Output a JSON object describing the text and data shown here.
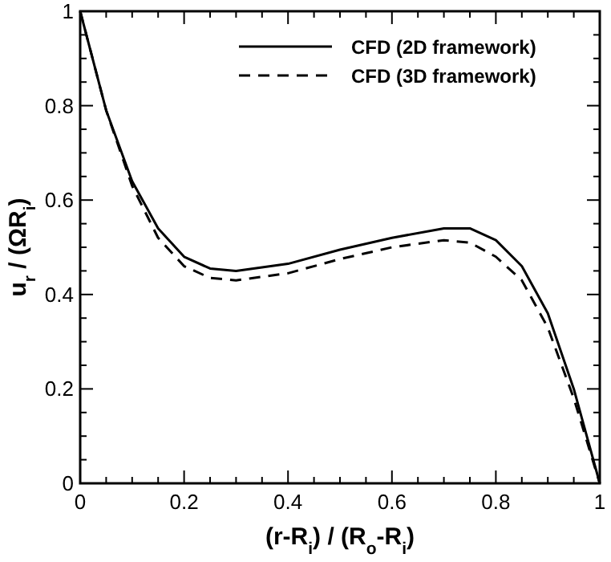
{
  "chart_data": {
    "type": "line",
    "xlabel": "(r-R$_{i}$) / (R$_{o}$-R$_{i}$)",
    "ylabel": "u$_{r}$ / (ΩR$_{i}$)",
    "x": [
      0,
      0.05,
      0.1,
      0.15,
      0.2,
      0.25,
      0.3,
      0.4,
      0.5,
      0.6,
      0.7,
      0.75,
      0.8,
      0.85,
      0.9,
      0.95,
      1
    ],
    "series": [
      {
        "name": "CFD (2D framework)",
        "color": "#000000",
        "line_style": "solid",
        "values": [
          1,
          0.79,
          0.64,
          0.54,
          0.48,
          0.455,
          0.45,
          0.465,
          0.495,
          0.52,
          0.54,
          0.54,
          0.515,
          0.46,
          0.36,
          0.2,
          0
        ]
      },
      {
        "name": "CFD (3D framework)",
        "color": "#000000",
        "line_style": "dashed",
        "values": [
          1,
          0.79,
          0.63,
          0.52,
          0.46,
          0.435,
          0.43,
          0.445,
          0.475,
          0.5,
          0.515,
          0.51,
          0.48,
          0.43,
          0.33,
          0.18,
          0
        ]
      }
    ],
    "xlim": [
      0,
      1
    ],
    "ylim": [
      0,
      1
    ],
    "xticks": [
      0,
      {
        "value": 0.05,
        "label": null
      },
      {
        "value": 0.1,
        "label": null
      },
      {
        "value": 0.15,
        "label": null
      },
      0.2,
      {
        "value": 0.25,
        "label": null
      },
      {
        "value": 0.3,
        "label": null
      },
      {
        "value": 0.35,
        "label": null
      },
      0.4,
      {
        "value": 0.45,
        "label": null
      },
      {
        "value": 0.5,
        "label": null
      },
      {
        "value": 0.55,
        "label": null
      },
      0.6,
      {
        "value": 0.65,
        "label": null
      },
      {
        "value": 0.7,
        "label": null
      },
      {
        "value": 0.75,
        "label": null
      },
      0.8,
      {
        "value": 0.85,
        "label": null
      },
      {
        "value": 0.9,
        "label": null
      },
      {
        "value": 0.95,
        "label": null
      },
      1
    ],
    "yticks": [
      0,
      {
        "value": 0.05,
        "label": null
      },
      {
        "value": 0.1,
        "label": null
      },
      {
        "value": 0.15,
        "label": null
      },
      0.2,
      {
        "value": 0.25,
        "label": null
      },
      {
        "value": 0.3,
        "label": null
      },
      {
        "value": 0.35,
        "label": null
      },
      0.4,
      {
        "value": 0.45,
        "label": null
      },
      {
        "value": 0.5,
        "label": null
      },
      {
        "value": 0.55,
        "label": null
      },
      0.6,
      {
        "value": 0.65,
        "label": null
      },
      {
        "value": 0.7,
        "label": null
      },
      {
        "value": 0.75,
        "label": null
      },
      0.8,
      {
        "value": 0.85,
        "label": null
      },
      {
        "value": 0.9,
        "label": null
      },
      {
        "value": 0.95,
        "label": null
      },
      1
    ],
    "legend": "top right",
    "grid": false
  }
}
